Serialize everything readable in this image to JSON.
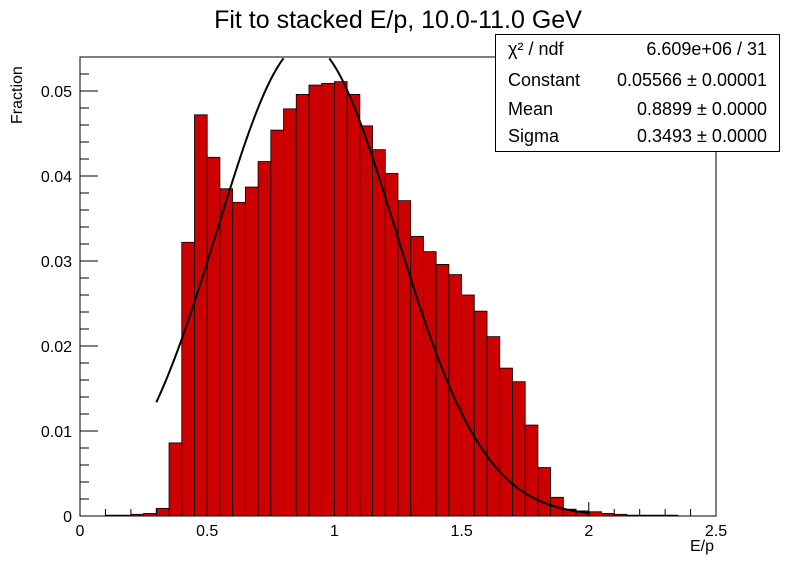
{
  "chart_data": {
    "type": "bar",
    "title": "Fit to stacked E/p, 10.0-11.0 GeV",
    "xlabel": "E/p",
    "ylabel": "Fraction",
    "xlim": [
      0,
      2.5
    ],
    "ylim": [
      0,
      0.054
    ],
    "x_ticks": [
      "0",
      "0.5",
      "1",
      "1.5",
      "2",
      "2.5"
    ],
    "y_ticks": [
      "0",
      "0.01",
      "0.02",
      "0.03",
      "0.04",
      "0.05"
    ],
    "bin_width": 0.05,
    "bin_start": 0.0,
    "bar_color": "#cc0000",
    "values": [
      0,
      0,
      0.0001,
      0.0001,
      0.0002,
      0.0003,
      0.0009,
      0.0086,
      0.0322,
      0.0472,
      0.0422,
      0.0385,
      0.0369,
      0.0387,
      0.0417,
      0.0454,
      0.0479,
      0.0496,
      0.0507,
      0.0509,
      0.0511,
      0.0496,
      0.0459,
      0.0431,
      0.0403,
      0.0371,
      0.0329,
      0.0311,
      0.0296,
      0.0284,
      0.026,
      0.0241,
      0.0211,
      0.0174,
      0.0158,
      0.0107,
      0.0057,
      0.0022,
      0.0008,
      0.0006,
      0.0005,
      0.0003,
      0.0002,
      0.0001,
      0.0001,
      0.0001,
      0.0001,
      0.0,
      0.0,
      0.0
    ],
    "fit": {
      "function": "gaus",
      "constant": 0.05566,
      "mean": 0.8899,
      "sigma": 0.3493,
      "range": [
        0.3,
        2.0
      ],
      "color": "#000000"
    },
    "stats_box": {
      "rows": [
        {
          "key": "χ² / ndf",
          "value": "6.609e+06 / 31"
        },
        {
          "key": "Constant",
          "value": "0.05566 ± 0.00001"
        },
        {
          "key": "Mean",
          "value": "0.8899 ± 0.0000"
        },
        {
          "key": "Sigma",
          "value": "0.3493 ± 0.0000"
        }
      ]
    }
  }
}
